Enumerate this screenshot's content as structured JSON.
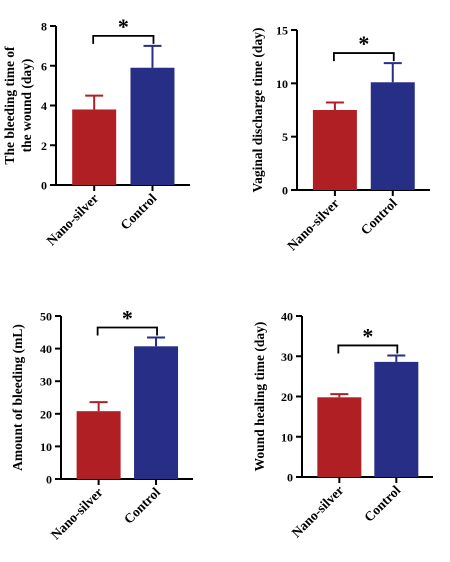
{
  "colors": {
    "nano_silver": "#B01F24",
    "control": "#262E85",
    "axis": "#000000"
  },
  "chart_data": [
    {
      "type": "bar",
      "ylabel": [
        "The bleeding time of",
        "the wound (day)"
      ],
      "categories": [
        "Nano-silver",
        "Control"
      ],
      "values": [
        3.8,
        5.9
      ],
      "errors": [
        0.7,
        1.1
      ],
      "ylim": [
        0,
        8
      ],
      "yticks": [
        0,
        2,
        4,
        6,
        8
      ],
      "significance": "*"
    },
    {
      "type": "bar",
      "ylabel": [
        "Vaginal discharge time (day)"
      ],
      "categories": [
        "Nano-silver",
        "Control"
      ],
      "values": [
        7.5,
        10.1
      ],
      "errors": [
        0.7,
        1.8
      ],
      "ylim": [
        0,
        15
      ],
      "yticks": [
        0,
        5,
        10,
        15
      ],
      "significance": "*"
    },
    {
      "type": "bar",
      "ylabel": [
        "Amount of bleeding (mL)"
      ],
      "categories": [
        "Nano-silver",
        "Control"
      ],
      "values": [
        20.8,
        40.7
      ],
      "errors": [
        2.8,
        2.7
      ],
      "ylim": [
        0,
        50
      ],
      "yticks": [
        0,
        10,
        20,
        30,
        40,
        50
      ],
      "significance": "*"
    },
    {
      "type": "bar",
      "ylabel": [
        "Wound healing time (day)"
      ],
      "categories": [
        "Nano-silver",
        "Control"
      ],
      "values": [
        19.8,
        28.6
      ],
      "errors": [
        0.8,
        1.6
      ],
      "ylim": [
        0,
        40
      ],
      "yticks": [
        0,
        10,
        20,
        30,
        40
      ],
      "significance": "*"
    }
  ]
}
